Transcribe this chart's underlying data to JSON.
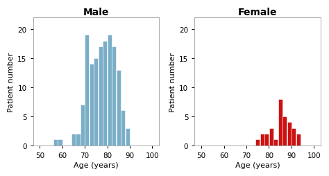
{
  "male_bin_lefts": [
    56,
    58,
    64,
    66,
    68,
    70,
    72,
    74,
    76,
    78,
    80,
    82,
    84,
    86,
    88
  ],
  "male_heights": [
    1,
    1,
    2,
    2,
    7,
    19,
    14,
    15,
    17,
    18,
    19,
    17,
    13,
    6,
    3
  ],
  "female_bin_lefts": [
    74,
    76,
    78,
    80,
    82,
    84,
    86,
    88,
    90,
    92
  ],
  "female_heights": [
    1,
    2,
    2,
    3,
    1,
    8,
    5,
    4,
    3,
    2
  ],
  "male_color": "#7aaec8",
  "female_color": "#cc1111",
  "male_title": "Male",
  "female_title": "Female",
  "xlabel": "Age (years)",
  "ylabel": "Patient number",
  "xlim": [
    47,
    103
  ],
  "ylim": [
    0,
    22
  ],
  "xticks": [
    50,
    60,
    70,
    80,
    90,
    100
  ],
  "yticks": [
    0,
    5,
    10,
    15,
    20
  ],
  "bin_width": 2,
  "background_color": "#ffffff",
  "title_fontsize": 10,
  "label_fontsize": 8,
  "tick_fontsize": 7.5
}
